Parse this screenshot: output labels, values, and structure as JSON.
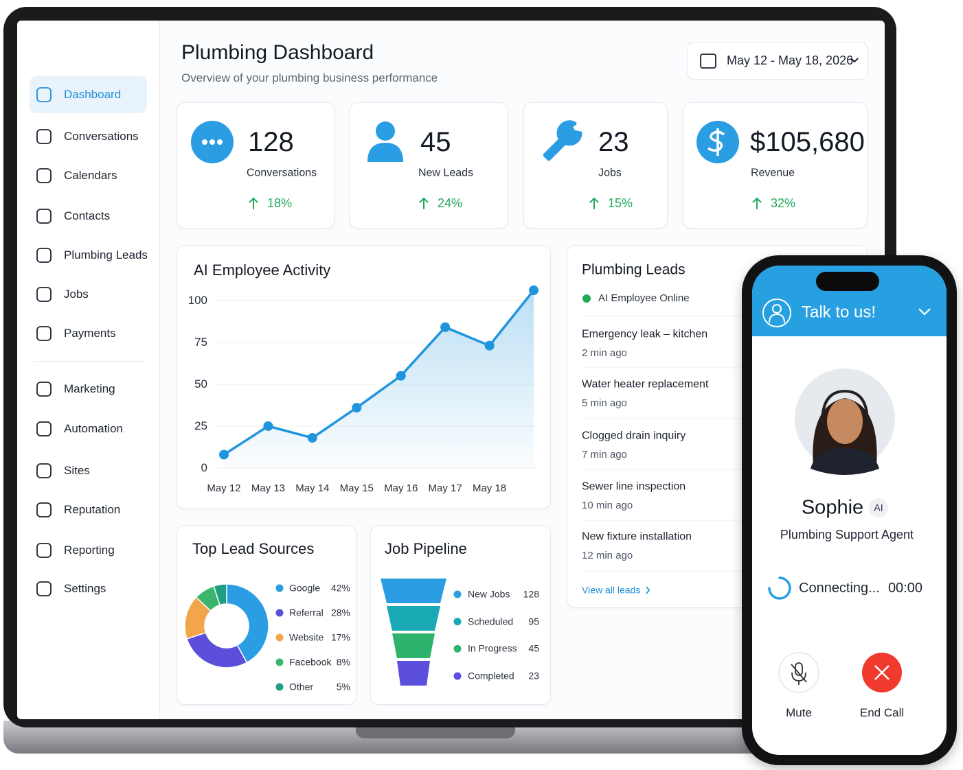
{
  "sidebar": {
    "items": [
      "Dashboard",
      "Conversations",
      "Calendars",
      "Contacts",
      "Plumbing Leads",
      "Jobs",
      "Payments",
      "Marketing",
      "Automation",
      "Sites",
      "Reputation",
      "Reporting",
      "Settings"
    ]
  },
  "header": {
    "title": "Plumbing Dashboard",
    "subtitle": "Overview of your plumbing business performance",
    "date_range": "May 12 - May 18, 2026"
  },
  "stats": [
    {
      "value": "128",
      "label": "Conversations",
      "change": "18%"
    },
    {
      "value": "45",
      "label": "New Leads",
      "change": "24%"
    },
    {
      "value": "23",
      "label": "Jobs",
      "change": "15%"
    },
    {
      "value": "$105,680",
      "label": "Revenue",
      "change": "32%"
    }
  ],
  "chart_data": [
    {
      "type": "line",
      "title": "AI Employee Activity",
      "categories": [
        "May 12",
        "May 13",
        "May 14",
        "May 15",
        "May 16",
        "May 17",
        "May 18",
        null
      ],
      "values": [
        8,
        25,
        18,
        36,
        55,
        84,
        73,
        106
      ],
      "color": "#1f95dd",
      "ylim": [
        0,
        106
      ],
      "yticks": [
        0,
        25,
        50,
        75,
        100
      ],
      "grid": true
    },
    {
      "type": "pie",
      "title": "Top Lead Sources",
      "categories": [
        "Google",
        "Referral",
        "Website",
        "Facebook",
        "Other"
      ],
      "values": [
        42,
        28,
        17,
        8,
        5
      ],
      "value_labels": [
        "42%",
        "28%",
        "17%",
        "8%",
        "5%"
      ],
      "colors": [
        "#2a9de3",
        "#5b4fdb",
        "#f2a54a",
        "#3bb56b",
        "#1f9e84"
      ]
    },
    {
      "type": "funnel",
      "title": "Job Pipeline",
      "categories": [
        "New Jobs",
        "Scheduled",
        "In Progress",
        "Completed"
      ],
      "values": [
        128,
        95,
        45,
        23
      ],
      "colors": [
        "#2a9de3",
        "#19a9b5",
        "#2db36b",
        "#5b4fdb"
      ]
    }
  ],
  "leads": {
    "title": "Plumbing Leads",
    "status": "AI Employee Online",
    "items": [
      {
        "title": "Emergency leak – kitchen",
        "time": "2 min ago"
      },
      {
        "title": "Water heater replacement",
        "time": "5 min ago"
      },
      {
        "title": "Clogged drain inquiry",
        "time": "7 min ago"
      },
      {
        "title": "Sewer line inspection",
        "time": "10 min ago"
      },
      {
        "title": "New fixture installation",
        "time": "12 min ago"
      }
    ],
    "link": "View all leads"
  },
  "phone": {
    "header": "Talk to us!",
    "name": "Sophie",
    "badge": "AI",
    "role": "Plumbing Support Agent",
    "status": "Connecting...",
    "timer": "00:00",
    "mute": "Mute",
    "end_call": "End Call"
  }
}
